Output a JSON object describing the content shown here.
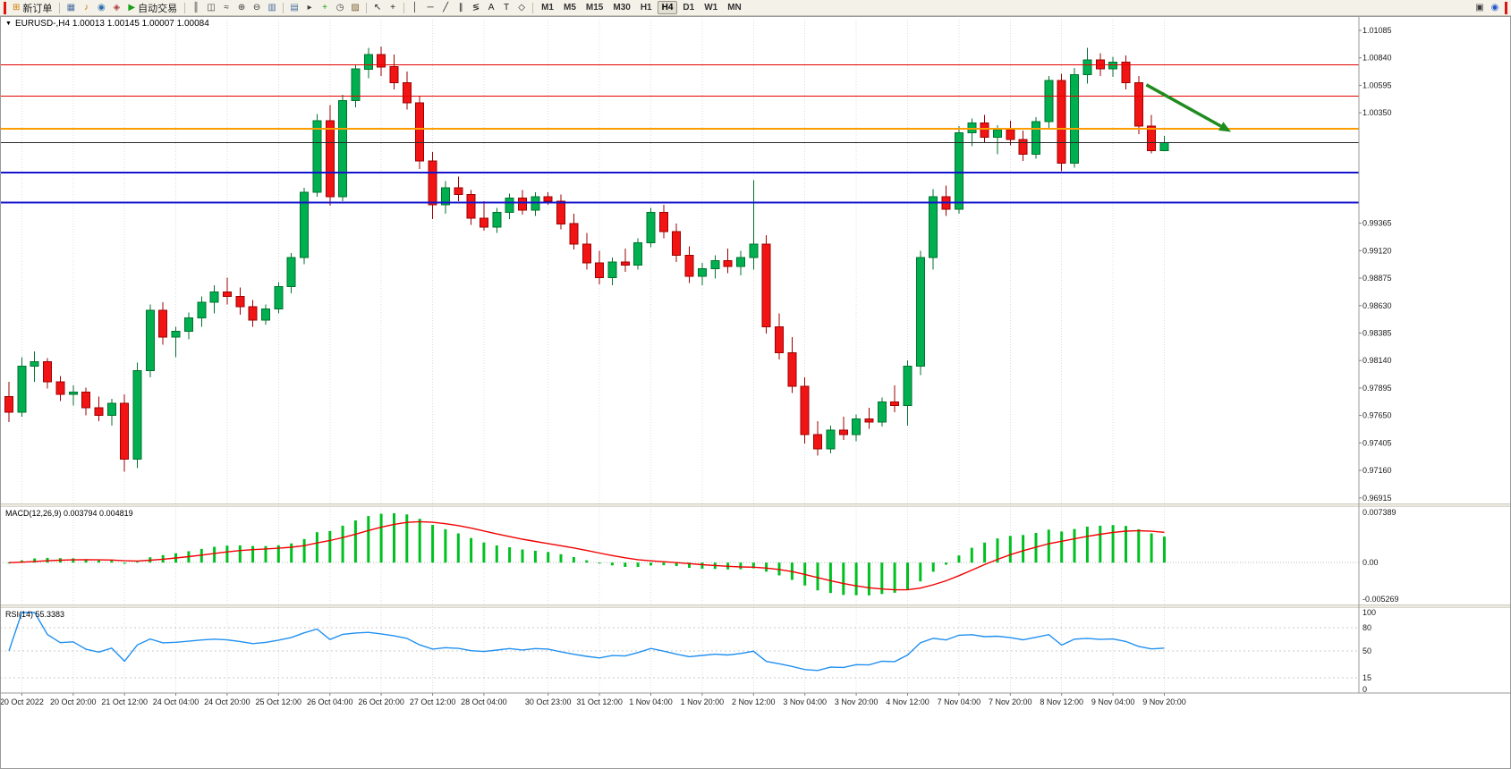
{
  "toolbar": {
    "items": [
      {
        "type": "accent",
        "name": "accent-bar-left"
      },
      {
        "type": "button",
        "name": "new-order-button",
        "glyph": "⊞",
        "glyph_color": "#d07800",
        "label": "新订单"
      },
      {
        "type": "sep"
      },
      {
        "type": "icon",
        "name": "charts-window-icon",
        "glyph": "▦",
        "color": "#4a6da0"
      },
      {
        "type": "icon",
        "name": "alerts-icon",
        "glyph": "♪",
        "color": "#c87800"
      },
      {
        "type": "icon",
        "name": "community-icon",
        "glyph": "◉",
        "color": "#2e6fb0"
      },
      {
        "type": "icon",
        "name": "market-icon",
        "glyph": "◈",
        "color": "#b04040"
      },
      {
        "type": "button",
        "name": "autotrade-button",
        "glyph": "▶",
        "glyph_color": "#18a018",
        "label": "自动交易"
      },
      {
        "type": "sep"
      },
      {
        "type": "icon",
        "name": "bar-chart-icon",
        "glyph": "║",
        "color": "#3c3c3c"
      },
      {
        "type": "icon",
        "name": "candlestick-chart-icon",
        "glyph": "◫",
        "color": "#3c3c3c"
      },
      {
        "type": "icon",
        "name": "line-chart-icon",
        "glyph": "≈",
        "color": "#3c3c3c"
      },
      {
        "type": "icon",
        "name": "zoom-in-icon",
        "glyph": "⊕",
        "color": "#3c3c3c"
      },
      {
        "type": "icon",
        "name": "zoom-out-icon",
        "glyph": "⊖",
        "color": "#3c3c3c"
      },
      {
        "type": "icon",
        "name": "tile-windows-icon",
        "glyph": "▥",
        "color": "#4a6da0"
      },
      {
        "type": "sep"
      },
      {
        "type": "icon",
        "name": "arrange-windows-icon",
        "glyph": "▤",
        "color": "#4a6da0"
      },
      {
        "type": "icon",
        "name": "chart-shift-icon",
        "glyph": "▸",
        "color": "#3c3c3c"
      },
      {
        "type": "icon",
        "name": "indicators-add-icon",
        "glyph": "+",
        "color": "#18a018"
      },
      {
        "type": "icon",
        "name": "periods-icon",
        "glyph": "◷",
        "color": "#3c3c3c"
      },
      {
        "type": "icon",
        "name": "templates-icon",
        "glyph": "▨",
        "color": "#7a5c2e"
      },
      {
        "type": "sep"
      },
      {
        "type": "icon",
        "name": "cursor-icon",
        "glyph": "↖",
        "color": "#1c1c1c"
      },
      {
        "type": "icon",
        "name": "crosshair-icon",
        "glyph": "+",
        "color": "#1c1c1c"
      },
      {
        "type": "sep"
      },
      {
        "type": "icon",
        "name": "vertical-line-icon",
        "glyph": "│",
        "color": "#1c1c1c"
      },
      {
        "type": "icon",
        "name": "horizontal-line-icon",
        "glyph": "─",
        "color": "#1c1c1c"
      },
      {
        "type": "icon",
        "name": "trendline-icon",
        "glyph": "╱",
        "color": "#1c1c1c"
      },
      {
        "type": "icon",
        "name": "channel-icon",
        "glyph": "∥",
        "color": "#1c1c1c"
      },
      {
        "type": "icon",
        "name": "fibonacci-icon",
        "glyph": "≶",
        "color": "#1c1c1c"
      },
      {
        "type": "icon",
        "name": "text-icon",
        "glyph": "A",
        "color": "#1c1c1c"
      },
      {
        "type": "icon",
        "name": "label-icon",
        "glyph": "T",
        "color": "#1c1c1c"
      },
      {
        "type": "icon",
        "name": "shapes-icon",
        "glyph": "◇",
        "color": "#1c1c1c"
      },
      {
        "type": "sep"
      },
      {
        "type": "timeframes"
      },
      {
        "type": "spacer"
      },
      {
        "type": "icon",
        "name": "fullscreen-icon",
        "glyph": "▣",
        "color": "#3c3c3c"
      },
      {
        "type": "icon",
        "name": "help-icon",
        "glyph": "◉",
        "color": "#2255cc"
      },
      {
        "type": "accent",
        "name": "accent-bar-right"
      }
    ],
    "timeframes": [
      "M1",
      "M5",
      "M15",
      "M30",
      "H1",
      "H4",
      "D1",
      "W1",
      "MN"
    ],
    "active_timeframe": "H4"
  },
  "chart": {
    "title_text": "EURUSD-,H4  1.00013 1.00145 1.00007 1.00084",
    "macd_text": "MACD(12,26,9) 0.003794 0.004819",
    "rsi_text": "RSI(14) 55.3383"
  },
  "chart_data": {
    "type": "candlestick",
    "symbol": "EURUSD-",
    "timeframe": "H4",
    "current_bar": {
      "open": 1.00013,
      "high": 1.00145,
      "low": 1.00007,
      "close": 1.00084
    },
    "price_axis_labels": [
      "1.01085",
      "1.00840",
      "1.00595",
      "1.00350",
      "0.99365",
      "0.99120",
      "0.98875",
      "0.98630",
      "0.98385",
      "0.98140",
      "0.97895",
      "0.97650",
      "0.97405",
      "0.97160",
      "0.96915"
    ],
    "horizontal_lines": [
      {
        "price": 1.00779,
        "label": "1.00779",
        "color": "#e60000",
        "width": 1
      },
      {
        "price": 1.00499,
        "label": "1.00499",
        "color": "#e60000",
        "width": 1
      },
      {
        "price": 1.00209,
        "label": "1.00209",
        "color": "#ff9c00",
        "width": 2
      },
      {
        "price": 1.00084,
        "label": "1.00084",
        "color": "#2b2b2b",
        "width": 1,
        "is_current_price": true
      },
      {
        "price": 0.99816,
        "label": "0.99816",
        "color": "#1414cc",
        "width": 2
      },
      {
        "price": 0.99548,
        "label": "0.99548",
        "color": "#1414cc",
        "width": 2
      }
    ],
    "indicators": [
      {
        "name": "MACD",
        "params": [
          12,
          26,
          9
        ],
        "current_values": [
          0.003794,
          0.004819
        ],
        "axis_labels": [
          "0.007389",
          "0.00",
          "-0.005269"
        ],
        "range": [
          -0.005269,
          0.007389
        ]
      },
      {
        "name": "RSI",
        "params": [
          14
        ],
        "current_value": 55.3383,
        "axis_labels": [
          "100",
          "80",
          "50",
          "15",
          "0"
        ],
        "axis_values": [
          100,
          80,
          50,
          15,
          0
        ],
        "levels": [
          80,
          50,
          15
        ]
      }
    ],
    "annotation_arrow": {
      "from_bar": 88.6,
      "from_price": 1.006,
      "to_bar": 95.2,
      "to_price": 1.0018,
      "color": "#1f8c1f"
    },
    "time_labels": [
      {
        "bar": 1,
        "label": "20 Oct 2022"
      },
      {
        "bar": 5,
        "label": "20 Oct 20:00"
      },
      {
        "bar": 9,
        "label": "21 Oct 12:00"
      },
      {
        "bar": 13,
        "label": "24 Oct 04:00"
      },
      {
        "bar": 17,
        "label": "24 Oct 20:00"
      },
      {
        "bar": 21,
        "label": "25 Oct 12:00"
      },
      {
        "bar": 25,
        "label": "26 Oct 04:00"
      },
      {
        "bar": 29,
        "label": "26 Oct 20:00"
      },
      {
        "bar": 33,
        "label": "27 Oct 12:00"
      },
      {
        "bar": 37,
        "label": "28 Oct 04:00"
      },
      {
        "bar": 42,
        "label": "30 Oct 23:00"
      },
      {
        "bar": 46,
        "label": "31 Oct 12:00"
      },
      {
        "bar": 50,
        "label": "1 Nov 04:00"
      },
      {
        "bar": 54,
        "label": "1 Nov 20:00"
      },
      {
        "bar": 58,
        "label": "2 Nov 12:00"
      },
      {
        "bar": 62,
        "label": "3 Nov 04:00"
      },
      {
        "bar": 66,
        "label": "3 Nov 20:00"
      },
      {
        "bar": 70,
        "label": "4 Nov 12:00"
      },
      {
        "bar": 74,
        "label": "7 Nov 04:00"
      },
      {
        "bar": 78,
        "label": "7 Nov 20:00"
      },
      {
        "bar": 82,
        "label": "8 Nov 12:00"
      },
      {
        "bar": 86,
        "label": "9 Nov 04:00"
      },
      {
        "bar": 90,
        "label": "9 Nov 20:00"
      }
    ],
    "candles": [
      [
        0.9782,
        0.9795,
        0.9759,
        0.9768
      ],
      [
        0.9768,
        0.9817,
        0.9764,
        0.9809
      ],
      [
        0.9809,
        0.9822,
        0.9795,
        0.9813
      ],
      [
        0.9813,
        0.9816,
        0.9789,
        0.9795
      ],
      [
        0.9795,
        0.98,
        0.9778,
        0.9784
      ],
      [
        0.9784,
        0.9792,
        0.9774,
        0.9786
      ],
      [
        0.9786,
        0.979,
        0.9765,
        0.9772
      ],
      [
        0.9772,
        0.9782,
        0.976,
        0.9765
      ],
      [
        0.9765,
        0.978,
        0.9756,
        0.9776
      ],
      [
        0.9776,
        0.9784,
        0.9715,
        0.9726
      ],
      [
        0.9726,
        0.9812,
        0.9718,
        0.9805
      ],
      [
        0.9805,
        0.9864,
        0.9799,
        0.9859
      ],
      [
        0.9859,
        0.9866,
        0.9828,
        0.9835
      ],
      [
        0.9835,
        0.9844,
        0.9817,
        0.984
      ],
      [
        0.984,
        0.9857,
        0.9833,
        0.9852
      ],
      [
        0.9852,
        0.9871,
        0.9844,
        0.9866
      ],
      [
        0.9866,
        0.9881,
        0.9856,
        0.9875
      ],
      [
        0.9875,
        0.9888,
        0.9864,
        0.9871
      ],
      [
        0.9871,
        0.9879,
        0.9855,
        0.9862
      ],
      [
        0.9862,
        0.9868,
        0.9844,
        0.985
      ],
      [
        0.985,
        0.9864,
        0.9846,
        0.986
      ],
      [
        0.986,
        0.9884,
        0.9856,
        0.988
      ],
      [
        0.988,
        0.991,
        0.9874,
        0.9906
      ],
      [
        0.9906,
        0.9968,
        0.99,
        0.9964
      ],
      [
        0.9964,
        1.0034,
        0.996,
        1.0028
      ],
      [
        1.0028,
        1.0042,
        0.9952,
        0.996
      ],
      [
        0.996,
        1.0051,
        0.9956,
        1.0046
      ],
      [
        1.0046,
        1.0078,
        1.004,
        1.0074
      ],
      [
        1.0074,
        1.0093,
        1.0066,
        1.0087
      ],
      [
        1.0087,
        1.0094,
        1.0068,
        1.0076
      ],
      [
        1.0076,
        1.0087,
        1.0056,
        1.0062
      ],
      [
        1.0062,
        1.0072,
        1.0038,
        1.0044
      ],
      [
        1.0044,
        1.005,
        0.9985,
        0.9992
      ],
      [
        0.9992,
        1.0,
        0.994,
        0.9953
      ],
      [
        0.9953,
        0.9974,
        0.9945,
        0.9968
      ],
      [
        0.9968,
        0.9978,
        0.9956,
        0.9962
      ],
      [
        0.9962,
        0.9966,
        0.9935,
        0.9941
      ],
      [
        0.9941,
        0.9956,
        0.993,
        0.9933
      ],
      [
        0.9933,
        0.995,
        0.9928,
        0.9946
      ],
      [
        0.9946,
        0.9963,
        0.994,
        0.9959
      ],
      [
        0.9959,
        0.9966,
        0.9944,
        0.9948
      ],
      [
        0.9948,
        0.9964,
        0.9943,
        0.996
      ],
      [
        0.996,
        0.9964,
        0.9953,
        0.9956
      ],
      [
        0.9956,
        0.9962,
        0.9931,
        0.9936
      ],
      [
        0.9936,
        0.9945,
        0.9913,
        0.9918
      ],
      [
        0.9918,
        0.9928,
        0.9895,
        0.9901
      ],
      [
        0.9901,
        0.9912,
        0.9882,
        0.9888
      ],
      [
        0.9888,
        0.9906,
        0.9881,
        0.9902
      ],
      [
        0.9902,
        0.9914,
        0.9893,
        0.9899
      ],
      [
        0.9899,
        0.9923,
        0.9895,
        0.9919
      ],
      [
        0.9919,
        0.995,
        0.9915,
        0.9946
      ],
      [
        0.9946,
        0.9953,
        0.9923,
        0.9929
      ],
      [
        0.9929,
        0.9936,
        0.9902,
        0.9908
      ],
      [
        0.9908,
        0.9916,
        0.9883,
        0.9889
      ],
      [
        0.9889,
        0.9901,
        0.9881,
        0.9896
      ],
      [
        0.9896,
        0.9908,
        0.9887,
        0.9903
      ],
      [
        0.9903,
        0.9914,
        0.9892,
        0.9898
      ],
      [
        0.9898,
        0.9912,
        0.989,
        0.9906
      ],
      [
        0.9906,
        0.9975,
        0.9895,
        0.9918
      ],
      [
        0.9918,
        0.9926,
        0.9838,
        0.9844
      ],
      [
        0.9844,
        0.9856,
        0.9815,
        0.9821
      ],
      [
        0.9821,
        0.9835,
        0.9785,
        0.9791
      ],
      [
        0.9791,
        0.9799,
        0.974,
        0.9748
      ],
      [
        0.9748,
        0.976,
        0.9729,
        0.9735
      ],
      [
        0.9735,
        0.9756,
        0.9731,
        0.9752
      ],
      [
        0.9752,
        0.9764,
        0.9743,
        0.9748
      ],
      [
        0.9748,
        0.9766,
        0.9742,
        0.9762
      ],
      [
        0.9762,
        0.9772,
        0.9753,
        0.9759
      ],
      [
        0.9759,
        0.9781,
        0.9755,
        0.9777
      ],
      [
        0.9777,
        0.9792,
        0.9768,
        0.9774
      ],
      [
        0.9774,
        0.9814,
        0.9756,
        0.9809
      ],
      [
        0.9809,
        0.9912,
        0.9801,
        0.9906
      ],
      [
        0.9906,
        0.9967,
        0.9895,
        0.996
      ],
      [
        0.996,
        0.997,
        0.9943,
        0.9949
      ],
      [
        0.9949,
        1.0023,
        0.9945,
        1.0017
      ],
      [
        1.0017,
        1.003,
        1.0005,
        1.0026
      ],
      [
        1.0026,
        1.0033,
        1.0008,
        1.0013
      ],
      [
        1.0013,
        1.0024,
        0.9998,
        1.002
      ],
      [
        1.002,
        1.0028,
        1.0006,
        1.0011
      ],
      [
        1.0011,
        1.0019,
        0.9992,
        0.9998
      ],
      [
        0.9998,
        1.0031,
        0.9994,
        1.0027
      ],
      [
        1.0027,
        1.0068,
        1.0021,
        1.0064
      ],
      [
        1.0064,
        1.007,
        0.9983,
        0.999
      ],
      [
        0.999,
        1.0075,
        0.9986,
        1.0069
      ],
      [
        1.0069,
        1.0093,
        1.0061,
        1.0082
      ],
      [
        1.0082,
        1.0088,
        1.0068,
        1.0074
      ],
      [
        1.0074,
        1.0085,
        1.0067,
        1.008
      ],
      [
        1.008,
        1.0086,
        1.0056,
        1.0062
      ],
      [
        1.0062,
        1.0068,
        1.0016,
        1.0023
      ],
      [
        1.0023,
        1.0033,
        0.9999,
        1.00013
      ],
      [
        1.00013,
        1.00145,
        1.00007,
        1.00084
      ]
    ]
  }
}
